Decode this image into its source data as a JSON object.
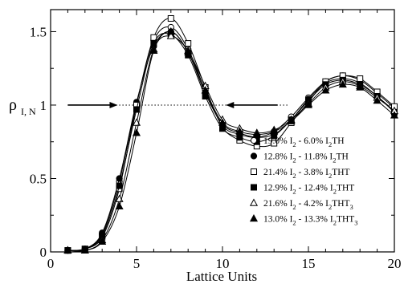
{
  "chart_data": {
    "type": "line",
    "xlabel": "Lattice Units",
    "ylabel_main": "ρ",
    "ylabel_sub": "I, N",
    "xlim": [
      0,
      20
    ],
    "ylim": [
      0,
      1.65
    ],
    "xticks": [
      0,
      5,
      10,
      15,
      20
    ],
    "yticks": [
      0,
      0.5,
      1,
      1.5
    ],
    "xtick_labels": [
      "0",
      "5",
      "10",
      "15",
      "20"
    ],
    "ytick_labels": [
      "0",
      "0.5",
      "1",
      "1.5"
    ],
    "grid": false,
    "legend_position": "right",
    "reference_line": {
      "y": 1,
      "x_range": [
        1,
        13.8
      ],
      "style": "dotted"
    },
    "arrows": [
      {
        "from": [
          1,
          1
        ],
        "to": [
          3.9,
          1
        ],
        "direction": "right"
      },
      {
        "from": [
          13.2,
          1
        ],
        "to": [
          10.2,
          1
        ],
        "direction": "left"
      }
    ],
    "x": [
      1,
      2,
      3,
      4,
      5,
      6,
      7,
      8,
      9,
      10,
      11,
      12,
      13,
      14,
      15,
      16,
      17,
      18,
      19,
      20
    ],
    "series": [
      {
        "marker": "circle-open",
        "legend": [
          {
            "t": "19.0% I",
            "sub": false
          },
          {
            "t": "2",
            "sub": true
          },
          {
            "t": " - 6.0% ",
            "sub": false
          },
          {
            "t": "I",
            "sub": false
          },
          {
            "t": "2",
            "sub": true
          },
          {
            "t": "TH",
            "sub": false
          }
        ],
        "values": [
          0.01,
          0.02,
          0.12,
          0.48,
          1.01,
          1.44,
          1.53,
          1.38,
          1.1,
          0.86,
          0.8,
          0.78,
          0.82,
          0.92,
          1.05,
          1.16,
          1.2,
          1.17,
          1.08,
          0.98
        ]
      },
      {
        "marker": "circle-filled",
        "legend": [
          {
            "t": "12.8% I",
            "sub": false
          },
          {
            "t": "2",
            "sub": true
          },
          {
            "t": " - 11.8% ",
            "sub": false
          },
          {
            "t": "I",
            "sub": false
          },
          {
            "t": "2",
            "sub": true
          },
          {
            "t": "TH",
            "sub": false
          }
        ],
        "values": [
          0.01,
          0.02,
          0.13,
          0.5,
          1.02,
          1.4,
          1.5,
          1.36,
          1.08,
          0.87,
          0.81,
          0.78,
          0.8,
          0.9,
          1.04,
          1.15,
          1.18,
          1.15,
          1.06,
          0.96
        ]
      },
      {
        "marker": "square-open",
        "legend": [
          {
            "t": "21.4% I",
            "sub": false
          },
          {
            "t": "2",
            "sub": true
          },
          {
            "t": " - 3.8% ",
            "sub": false
          },
          {
            "t": "I",
            "sub": false
          },
          {
            "t": "2",
            "sub": true
          },
          {
            "t": "THT",
            "sub": false
          }
        ],
        "values": [
          0.01,
          0.02,
          0.1,
          0.43,
          1.0,
          1.46,
          1.59,
          1.42,
          1.12,
          0.85,
          0.76,
          0.72,
          0.74,
          0.88,
          1.02,
          1.16,
          1.2,
          1.18,
          1.09,
          0.99
        ]
      },
      {
        "marker": "square-filled",
        "legend": [
          {
            "t": "12.9% I",
            "sub": false
          },
          {
            "t": "2",
            "sub": true
          },
          {
            "t": " - 12.4% ",
            "sub": false
          },
          {
            "t": "I",
            "sub": false
          },
          {
            "t": "2",
            "sub": true
          },
          {
            "t": "THT",
            "sub": false
          }
        ],
        "values": [
          0.01,
          0.02,
          0.11,
          0.45,
          0.97,
          1.42,
          1.48,
          1.34,
          1.06,
          0.84,
          0.78,
          0.75,
          0.79,
          0.9,
          1.03,
          1.14,
          1.17,
          1.14,
          1.06,
          0.95
        ]
      },
      {
        "marker": "triangle-open",
        "legend": [
          {
            "t": "21.6% I",
            "sub": false
          },
          {
            "t": "2",
            "sub": true
          },
          {
            "t": " - 4.2% ",
            "sub": false
          },
          {
            "t": "I",
            "sub": false
          },
          {
            "t": "2",
            "sub": true
          },
          {
            "t": "THT",
            "sub": false
          },
          {
            "t": "3",
            "sub": true
          }
        ],
        "values": [
          0.01,
          0.01,
          0.08,
          0.36,
          0.88,
          1.38,
          1.47,
          1.37,
          1.13,
          0.9,
          0.84,
          0.81,
          0.83,
          0.9,
          1.01,
          1.12,
          1.16,
          1.13,
          1.05,
          0.96
        ]
      },
      {
        "marker": "triangle-filled",
        "legend": [
          {
            "t": "13.0% I",
            "sub": false
          },
          {
            "t": "2",
            "sub": true
          },
          {
            "t": " - 13.3% ",
            "sub": false
          },
          {
            "t": "I",
            "sub": false
          },
          {
            "t": "2",
            "sub": true
          },
          {
            "t": "THT",
            "sub": false
          },
          {
            "t": "3",
            "sub": true
          }
        ],
        "values": [
          0.01,
          0.01,
          0.07,
          0.31,
          0.81,
          1.37,
          1.5,
          1.36,
          1.1,
          0.88,
          0.82,
          0.8,
          0.82,
          0.89,
          1.0,
          1.1,
          1.14,
          1.12,
          1.03,
          0.93
        ]
      }
    ]
  }
}
